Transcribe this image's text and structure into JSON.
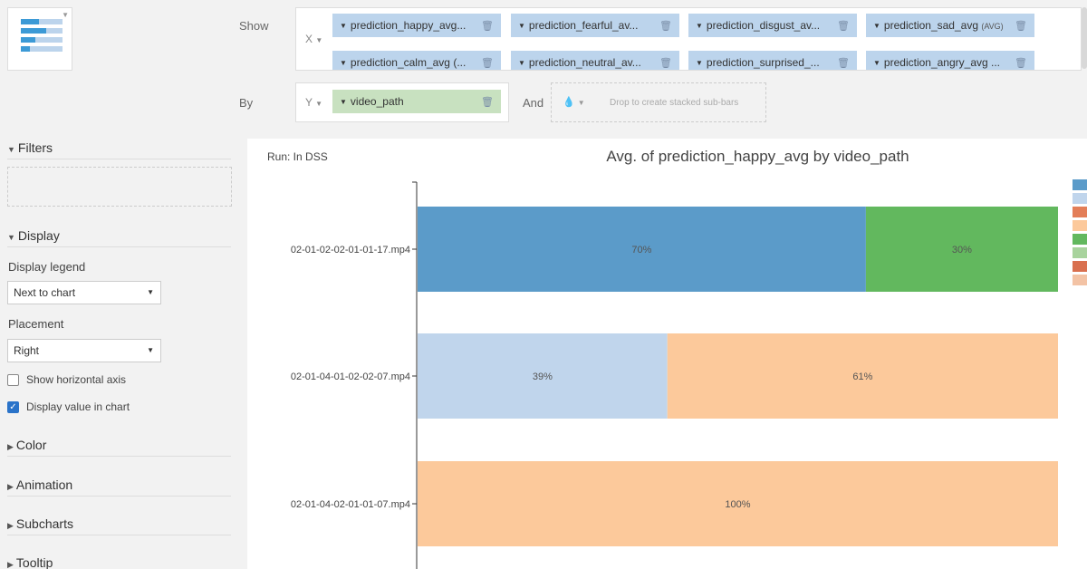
{
  "top": {
    "show_label": "Show",
    "x_axis_letter": "X",
    "by_label": "By",
    "y_axis_letter": "Y",
    "and_label": "And",
    "drop_hint": "Drop to create stacked sub-bars",
    "measures": [
      {
        "label": "prediction_happy_avg...",
        "agg": ""
      },
      {
        "label": "prediction_fearful_av...",
        "agg": ""
      },
      {
        "label": "prediction_disgust_av...",
        "agg": ""
      },
      {
        "label": "prediction_sad_avg",
        "agg": "(AVG)"
      },
      {
        "label": "prediction_calm_avg (...",
        "agg": ""
      },
      {
        "label": "prediction_neutral_av...",
        "agg": ""
      },
      {
        "label": "prediction_surprised_...",
        "agg": ""
      },
      {
        "label": "prediction_angry_avg ...",
        "agg": ""
      }
    ],
    "dimension": "video_path"
  },
  "sidebar": {
    "filters": "Filters",
    "display": "Display",
    "display_legend": "Display legend",
    "legend_value": "Next to chart",
    "placement": "Placement",
    "placement_value": "Right",
    "show_horizontal_axis": "Show horizontal axis",
    "show_horizontal_axis_checked": false,
    "display_value_in_chart": "Display value in chart",
    "display_value_in_chart_checked": true,
    "color": "Color",
    "animation": "Animation",
    "subcharts": "Subcharts",
    "tooltip": "Tooltip"
  },
  "chart": {
    "run_label": "Run: In DSS",
    "colors": [
      "#5b9bc9",
      "#c0d5ec",
      "#e37e58",
      "#fcc99b",
      "#62b85e",
      "#a8d39d",
      "#d9704f",
      "#f3c3a5"
    ]
  },
  "chart_data": {
    "type": "bar",
    "orientation": "horizontal",
    "stacked": true,
    "normalized": true,
    "title": "Avg. of prediction_happy_avg by video_path",
    "categories": [
      "02-01-02-02-01-01-17.mp4",
      "02-01-04-01-02-02-07.mp4",
      "02-01-04-02-01-01-07.mp4"
    ],
    "segments": [
      [
        {
          "value": 70,
          "label": "70%",
          "color": "#5b9bc9"
        },
        {
          "value": 30,
          "label": "30%",
          "color": "#62b85e"
        }
      ],
      [
        {
          "value": 39,
          "label": "39%",
          "color": "#c0d5ec"
        },
        {
          "value": 61,
          "label": "61%",
          "color": "#fcc99b"
        }
      ],
      [
        {
          "value": 100,
          "label": "100%",
          "color": "#fcc99b"
        }
      ]
    ],
    "xlim": [
      0,
      100
    ],
    "legend_placement": "right"
  }
}
